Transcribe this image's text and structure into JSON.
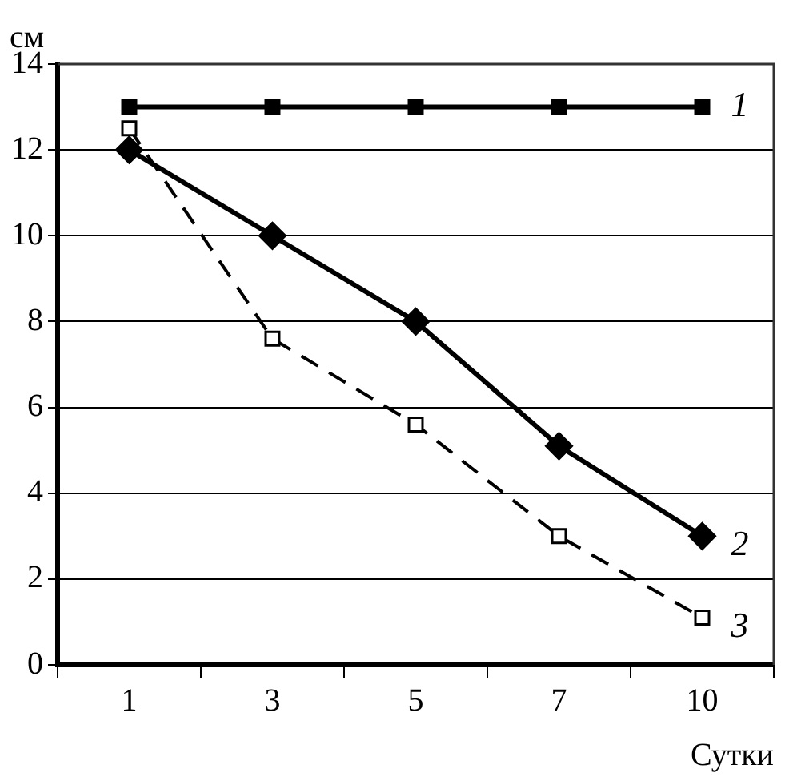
{
  "chart_data": {
    "type": "line",
    "xlabel": "Сутки",
    "ylabel": "см",
    "categories": [
      "1",
      "3",
      "5",
      "7",
      "10"
    ],
    "series": [
      {
        "name": "1",
        "color": "#000000",
        "values": [
          13,
          13,
          13,
          13,
          13
        ],
        "marker": "square",
        "line_style": "solid"
      },
      {
        "name": "2",
        "color": "#000000",
        "values": [
          12,
          10,
          8,
          5.1,
          3
        ],
        "marker": "diamond",
        "line_style": "solid"
      },
      {
        "name": "3",
        "color": "#000000",
        "values": [
          12.5,
          7.6,
          5.6,
          3,
          1.1
        ],
        "marker": "square",
        "line_style": "dashed"
      }
    ],
    "ylim": [
      0,
      14
    ],
    "yticks": [
      0,
      2,
      4,
      6,
      8,
      10,
      12,
      14
    ],
    "grid": "y",
    "legend": false
  }
}
